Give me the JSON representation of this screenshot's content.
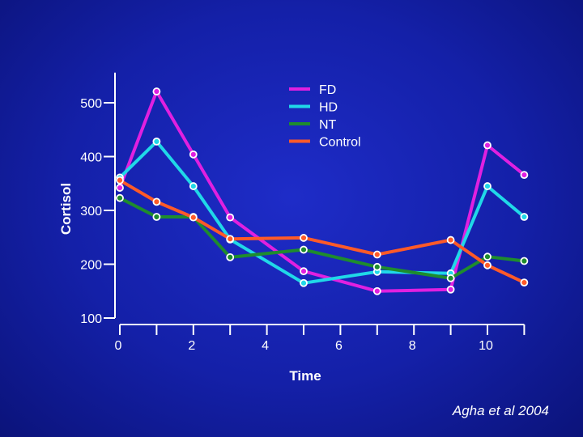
{
  "chart_data": {
    "type": "line",
    "title": "",
    "xlabel": "Time",
    "ylabel": "Cortisol",
    "xlim": [
      0,
      11
    ],
    "ylim": [
      100,
      520
    ],
    "xticks": [
      0,
      2,
      4,
      6,
      8,
      10
    ],
    "yticks": [
      100,
      200,
      300,
      400,
      500
    ],
    "grid": false,
    "legend_position": "top-right",
    "x": [
      0,
      1,
      2,
      3,
      4,
      5,
      6,
      7,
      8,
      9,
      10,
      11
    ],
    "series": [
      {
        "name": "FD",
        "color": "#e020e0",
        "x": [
          0,
          1,
          2,
          3,
          5,
          7,
          9,
          10,
          11
        ],
        "values": [
          342,
          521,
          404,
          287,
          187,
          150,
          153,
          421,
          366
        ]
      },
      {
        "name": "HD",
        "color": "#20d8e8",
        "x": [
          0,
          1,
          2,
          3,
          5,
          7,
          9,
          10,
          11
        ],
        "values": [
          361,
          428,
          345,
          246,
          165,
          186,
          183,
          345,
          288
        ]
      },
      {
        "name": "NT",
        "color": "#1e8c2e",
        "x": [
          0,
          1,
          2,
          3,
          5,
          7,
          9,
          10,
          11
        ],
        "values": [
          323,
          288,
          288,
          213,
          227,
          195,
          174,
          214,
          206
        ]
      },
      {
        "name": "Control",
        "color": "#ff5a28",
        "x": [
          0,
          1,
          2,
          3,
          5,
          7,
          9,
          10,
          11
        ],
        "values": [
          356,
          316,
          287,
          247,
          249,
          218,
          245,
          198,
          166
        ]
      }
    ]
  },
  "citation": "Agha et al 2004"
}
